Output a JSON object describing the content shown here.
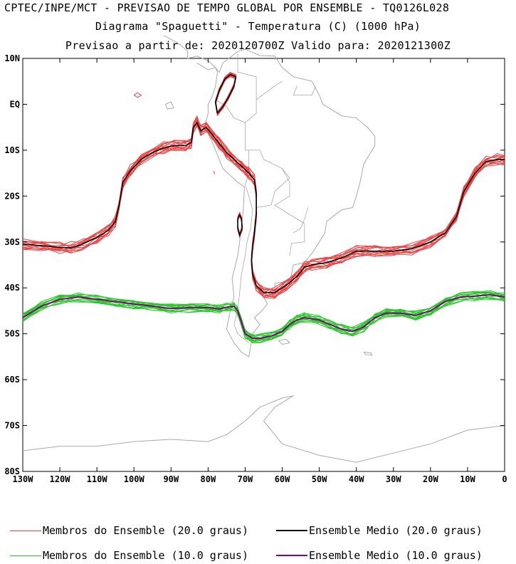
{
  "header": {
    "line1": "CPTEC/INPE/MCT - PREVISAO DE TEMPO GLOBAL POR ENSEMBLE - TQ0126L028",
    "line2": "Diagrama \"Spaguetti\" - Temperatura (C) (1000 hPa)",
    "line3": "Previsao a partir de: 2020120700Z  Valido para: 2020121300Z"
  },
  "map": {
    "lon_range": [
      -130,
      0
    ],
    "lat_range": [
      -80,
      10
    ],
    "lat_ticks": [
      "10N",
      "EQ",
      "10S",
      "20S",
      "30S",
      "40S",
      "50S",
      "60S",
      "70S",
      "80S"
    ],
    "lon_ticks": [
      "130W",
      "120W",
      "110W",
      "100W",
      "90W",
      "80W",
      "70W",
      "60W",
      "50W",
      "40W",
      "30W",
      "20W",
      "10W",
      "0"
    ],
    "coastline_color": "#aaaaaa",
    "contour_20": [
      [
        -130,
        -30.5
      ],
      [
        -125,
        -30.8
      ],
      [
        -120,
        -31.2
      ],
      [
        -117,
        -31.3
      ],
      [
        -114,
        -30.5
      ],
      [
        -110,
        -29.0
      ],
      [
        -107,
        -27.5
      ],
      [
        -105,
        -25.5
      ],
      [
        -104,
        -22.0
      ],
      [
        -103,
        -17.0
      ],
      [
        -101,
        -14.5
      ],
      [
        -98,
        -12.0
      ],
      [
        -95,
        -10.5
      ],
      [
        -92,
        -9.5
      ],
      [
        -89,
        -9.0
      ],
      [
        -86,
        -9.0
      ],
      [
        -84.5,
        -8.3
      ],
      [
        -84,
        -5.0
      ],
      [
        -83,
        -4.0
      ],
      [
        -82,
        -5.8
      ],
      [
        -80.5,
        -5.0
      ],
      [
        -79,
        -6.5
      ],
      [
        -77,
        -8.5
      ],
      [
        -75,
        -10.5
      ],
      [
        -73,
        -12.0
      ],
      [
        -71,
        -13.5
      ],
      [
        -69,
        -15.0
      ],
      [
        -67.5,
        -16.5
      ],
      [
        -67,
        -19.5
      ],
      [
        -67,
        -24.0
      ],
      [
        -67.5,
        -28.0
      ],
      [
        -68,
        -31.0
      ],
      [
        -68.3,
        -34.0
      ],
      [
        -68.0,
        -37.0
      ],
      [
        -67,
        -39.5
      ],
      [
        -65,
        -41.0
      ],
      [
        -62,
        -41.0
      ],
      [
        -59,
        -39.5
      ],
      [
        -56,
        -37.5
      ],
      [
        -54,
        -35.5
      ],
      [
        -52,
        -35.0
      ],
      [
        -48,
        -34.5
      ],
      [
        -44,
        -33.5
      ],
      [
        -40,
        -32.0
      ],
      [
        -35,
        -32.0
      ],
      [
        -30,
        -32.0
      ],
      [
        -25,
        -31.5
      ],
      [
        -20,
        -30.0
      ],
      [
        -16,
        -28.0
      ],
      [
        -13,
        -24.5
      ],
      [
        -11,
        -19.0
      ],
      [
        -8,
        -15.0
      ],
      [
        -5,
        -12.5
      ],
      [
        -2,
        -12.0
      ],
      [
        0,
        -12.0
      ]
    ],
    "contour_20_island_a": [
      [
        -77.5,
        -2.0
      ],
      [
        -76,
        -0.5
      ],
      [
        -74.5,
        1.5
      ],
      [
        -73,
        4.0
      ],
      [
        -72.5,
        6.0
      ],
      [
        -74,
        6.5
      ],
      [
        -75.5,
        5.5
      ],
      [
        -77,
        3.0
      ],
      [
        -78,
        0.5
      ],
      [
        -77.5,
        -2.0
      ]
    ],
    "contour_20_island_b": [
      [
        -71.5,
        -24.0
      ],
      [
        -71.0,
        -25.0
      ],
      [
        -70.8,
        -27.0
      ],
      [
        -71.5,
        -28.5
      ],
      [
        -72.0,
        -27.0
      ],
      [
        -72.0,
        -25.0
      ],
      [
        -71.5,
        -24.0
      ]
    ],
    "contour_10": [
      [
        -130,
        -46.5
      ],
      [
        -125,
        -44.0
      ],
      [
        -120,
        -42.5
      ],
      [
        -115,
        -42.0
      ],
      [
        -110,
        -42.5
      ],
      [
        -105,
        -43.0
      ],
      [
        -100,
        -43.5
      ],
      [
        -95,
        -44.0
      ],
      [
        -90,
        -44.5
      ],
      [
        -85,
        -44.3
      ],
      [
        -80,
        -44.3
      ],
      [
        -77,
        -44.6
      ],
      [
        -75,
        -44.2
      ],
      [
        -73,
        -44.0
      ],
      [
        -72,
        -45.0
      ],
      [
        -71,
        -47.5
      ],
      [
        -70,
        -50.0
      ],
      [
        -68,
        -51.0
      ],
      [
        -66,
        -51.0
      ],
      [
        -63,
        -50.5
      ],
      [
        -60,
        -49.5
      ],
      [
        -58,
        -48.0
      ],
      [
        -56,
        -47.0
      ],
      [
        -54,
        -46.5
      ],
      [
        -50,
        -47.0
      ],
      [
        -47,
        -48.0
      ],
      [
        -44,
        -49.0
      ],
      [
        -41,
        -49.5
      ],
      [
        -38,
        -48.5
      ],
      [
        -35,
        -46.5
      ],
      [
        -32,
        -45.5
      ],
      [
        -28,
        -45.5
      ],
      [
        -24,
        -46.0
      ],
      [
        -20,
        -45.0
      ],
      [
        -16,
        -43.0
      ],
      [
        -12,
        -42.0
      ],
      [
        -8,
        -41.8
      ],
      [
        -4,
        -41.5
      ],
      [
        0,
        -42.0
      ]
    ],
    "ensemble_colors": {
      "members_20": "#ee4444",
      "mean_20": "#000000",
      "members_10": "#22cc22",
      "mean_10": "#880088"
    }
  },
  "legend": {
    "members_20": "Membros do Ensemble (20.0 graus)",
    "mean_20": "Ensemble Medio (20.0 graus)",
    "members_10": "Membros do Ensemble (10.0 graus)",
    "mean_10": "Ensemble Medio (10.0 graus)"
  }
}
